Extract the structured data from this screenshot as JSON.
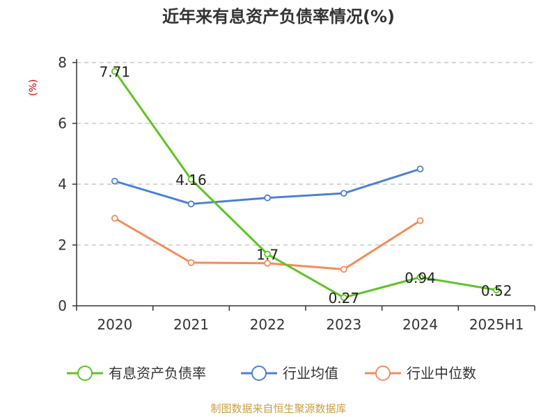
{
  "chart_data": {
    "type": "line",
    "title": "近年来有息资产负债率情况(%)",
    "ylabel": "(%)",
    "categories": [
      "2020",
      "2021",
      "2022",
      "2023",
      "2024",
      "2025H1"
    ],
    "yticks": [
      "0",
      "2",
      "4",
      "6",
      "8"
    ],
    "ylim": [
      0,
      8
    ],
    "grid": true,
    "legend_position": "bottom",
    "series": [
      {
        "name": "有息资产负债率",
        "color": "#5ec424",
        "values": [
          7.71,
          4.16,
          1.7,
          0.27,
          0.94,
          0.52
        ],
        "labels": [
          "7.71",
          "4.16",
          "1.7",
          "0.27",
          "0.94",
          "0.52"
        ]
      },
      {
        "name": "行业均值",
        "color": "#4a7fd8",
        "values": [
          4.1,
          3.35,
          3.55,
          3.7,
          4.5,
          null
        ]
      },
      {
        "name": "行业中位数",
        "color": "#f48b5a",
        "values": [
          2.88,
          1.42,
          1.4,
          1.2,
          2.8,
          null
        ]
      }
    ]
  },
  "source": "制图数据来自恒生聚源数据库"
}
